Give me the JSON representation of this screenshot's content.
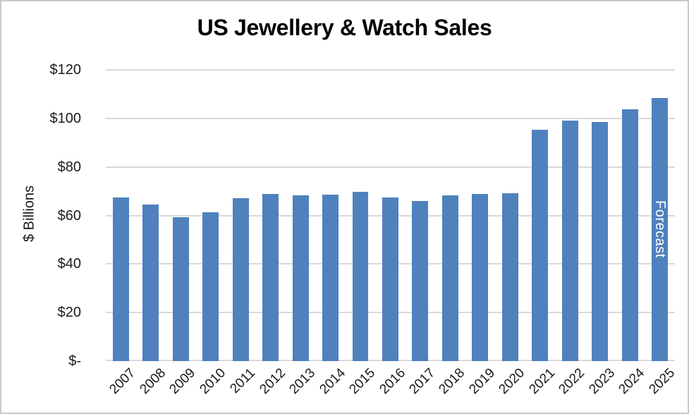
{
  "chart_data": {
    "type": "bar",
    "title": "US Jewellery & Watch Sales",
    "ylabel": "$ Billions",
    "xlabel": "",
    "categories": [
      "2007",
      "2008",
      "2009",
      "2010",
      "2011",
      "2012",
      "2013",
      "2014",
      "2015",
      "2016",
      "2017",
      "2018",
      "2019",
      "2020",
      "2021",
      "2022",
      "2023",
      "2024",
      "2025"
    ],
    "values": [
      67.3,
      64.5,
      59.3,
      61.2,
      67.0,
      68.9,
      68.4,
      68.7,
      69.6,
      67.3,
      66.0,
      68.3,
      68.9,
      69.1,
      95.2,
      99.0,
      98.4,
      103.8,
      108.5
    ],
    "ylim": [
      0,
      120
    ],
    "y_ticks": [
      {
        "value": 0,
        "label": "$-"
      },
      {
        "value": 20,
        "label": "$20"
      },
      {
        "value": 40,
        "label": "$40"
      },
      {
        "value": 60,
        "label": "$60"
      },
      {
        "value": 80,
        "label": "$80"
      },
      {
        "value": 100,
        "label": "$100"
      },
      {
        "value": 120,
        "label": "$120"
      }
    ],
    "grid": "horizontal",
    "legend": "none",
    "colors": {
      "bar": "#4F81BD",
      "gridline": "#D9D9D9",
      "axis_line": "#D9D9D9",
      "text": "#1A1A1A",
      "annotation_text": "#FFFFFF",
      "background": "#FFFFFF",
      "border": "#C9C9C9"
    },
    "annotations": [
      {
        "text": "Forecast",
        "category": "2025",
        "orientation": "vertical",
        "color": "#FFFFFF"
      }
    ]
  }
}
